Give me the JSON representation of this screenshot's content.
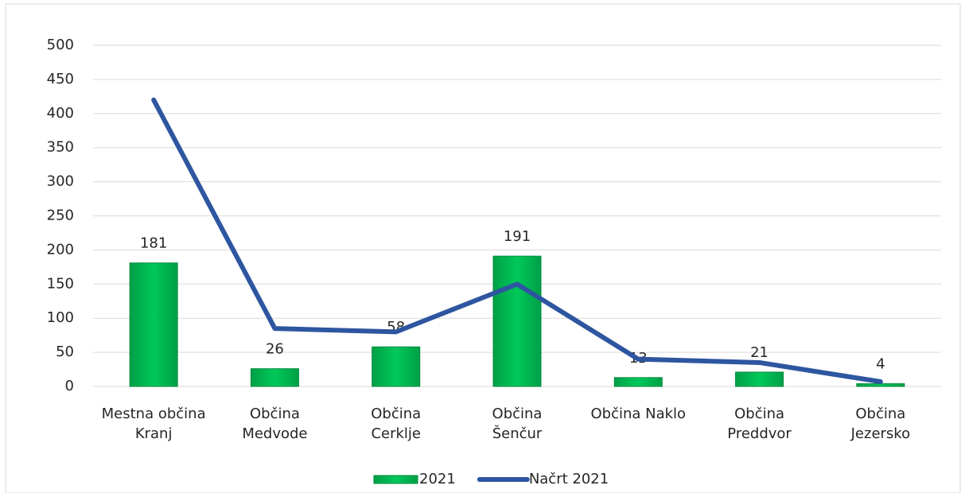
{
  "chart_data": {
    "type": "bar",
    "categories": [
      [
        "Mestna občina",
        "Kranj"
      ],
      [
        "Občina",
        "Medvode"
      ],
      [
        "Občina",
        "Cerklje"
      ],
      [
        "Občina",
        "Šenčur"
      ],
      [
        "Občina Naklo"
      ],
      [
        "Občina",
        "Preddvor"
      ],
      [
        "Občina",
        "Jezersko"
      ]
    ],
    "series": [
      {
        "name": "2021",
        "type": "bar",
        "color": "#00b050",
        "values": [
          181,
          26,
          58,
          191,
          13,
          21,
          4
        ]
      },
      {
        "name": "Načrt 2021",
        "type": "line",
        "color": "#2e56a0",
        "values": [
          420,
          85,
          80,
          150,
          40,
          35,
          7
        ]
      }
    ],
    "ylim": [
      0,
      500
    ],
    "yticks": [
      0,
      50,
      100,
      150,
      200,
      250,
      300,
      350,
      400,
      450,
      500
    ],
    "grid": true,
    "legend": "bottom"
  }
}
